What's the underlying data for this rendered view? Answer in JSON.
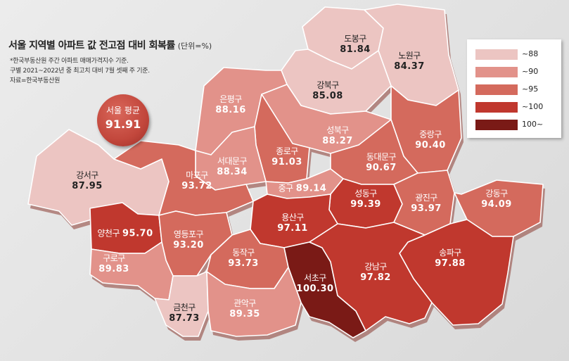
{
  "title": "서울 지역별 아파트 값 전고점 대비 회복률",
  "unit": "(단위=%)",
  "notes": [
    "*한국부동산원 주간 아파트 매매가격지수 기준.",
    "구별 2021~2022년 중 최고치 대비 7월 셋째 주 기준.",
    "자료=한국부동산원"
  ],
  "average": {
    "label": "서울 평균",
    "value": "91.91"
  },
  "legend": [
    {
      "label": "~88",
      "color": "#ecc5c2"
    },
    {
      "label": "~90",
      "color": "#e2928a"
    },
    {
      "label": "~95",
      "color": "#d46a5d"
    },
    {
      "label": "~100",
      "color": "#c0382e"
    },
    {
      "label": "100~",
      "color": "#7a1a16"
    }
  ],
  "districts": [
    {
      "name": "도봉구",
      "value": "81.84"
    },
    {
      "name": "노원구",
      "value": "84.37"
    },
    {
      "name": "강북구",
      "value": "85.08"
    },
    {
      "name": "은평구",
      "value": "88.16"
    },
    {
      "name": "성북구",
      "value": "88.27"
    },
    {
      "name": "중랑구",
      "value": "90.40"
    },
    {
      "name": "종로구",
      "value": "91.03"
    },
    {
      "name": "서대문구",
      "value": "88.34"
    },
    {
      "name": "동대문구",
      "value": "90.67"
    },
    {
      "name": "강서구",
      "value": "87.95"
    },
    {
      "name": "마포구",
      "value": "93.72"
    },
    {
      "name": "중구",
      "value": "89.14"
    },
    {
      "name": "성동구",
      "value": "99.39"
    },
    {
      "name": "광진구",
      "value": "93.97"
    },
    {
      "name": "강동구",
      "value": "94.09"
    },
    {
      "name": "용산구",
      "value": "97.11"
    },
    {
      "name": "양천구",
      "value": "95.70"
    },
    {
      "name": "영등포구",
      "value": "93.20"
    },
    {
      "name": "동작구",
      "value": "93.73"
    },
    {
      "name": "송파구",
      "value": "97.88"
    },
    {
      "name": "구로구",
      "value": "89.83"
    },
    {
      "name": "서초구",
      "value": "100.30"
    },
    {
      "name": "강남구",
      "value": "97.82"
    },
    {
      "name": "금천구",
      "value": "87.73"
    },
    {
      "name": "관악구",
      "value": "89.35"
    }
  ]
}
